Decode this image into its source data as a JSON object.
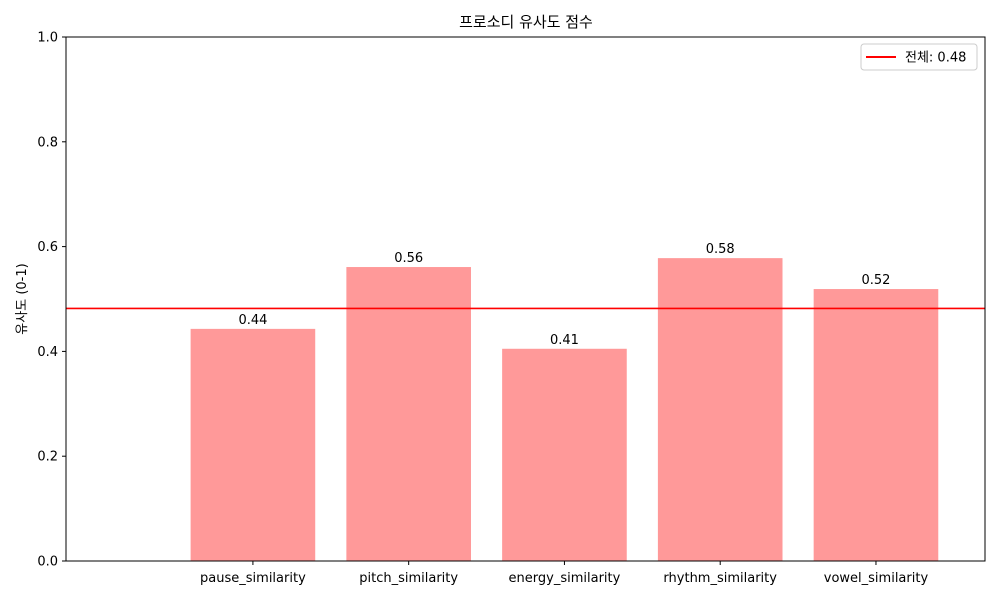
{
  "chart_data": {
    "type": "bar",
    "title": "프로소디 유사도 점수",
    "xlabel": "",
    "ylabel": "유사도 (0-1)",
    "ylim": [
      0,
      1
    ],
    "yticks": [
      "0.0",
      "0.2",
      "0.4",
      "0.6",
      "0.8",
      "1.0"
    ],
    "categories": [
      "pause_similarity",
      "pitch_similarity",
      "energy_similarity",
      "rhythm_similarity",
      "vowel_similarity"
    ],
    "values": [
      0.443,
      0.561,
      0.405,
      0.578,
      0.519
    ],
    "data_labels": [
      "0.44",
      "0.56",
      "0.41",
      "0.58",
      "0.52"
    ],
    "bar_color": "#ff9999",
    "reference_line": {
      "value": 0.482,
      "color": "#ff0000",
      "legend_label": "전체: 0.48"
    },
    "legend_position": "upper right",
    "grid": false
  }
}
